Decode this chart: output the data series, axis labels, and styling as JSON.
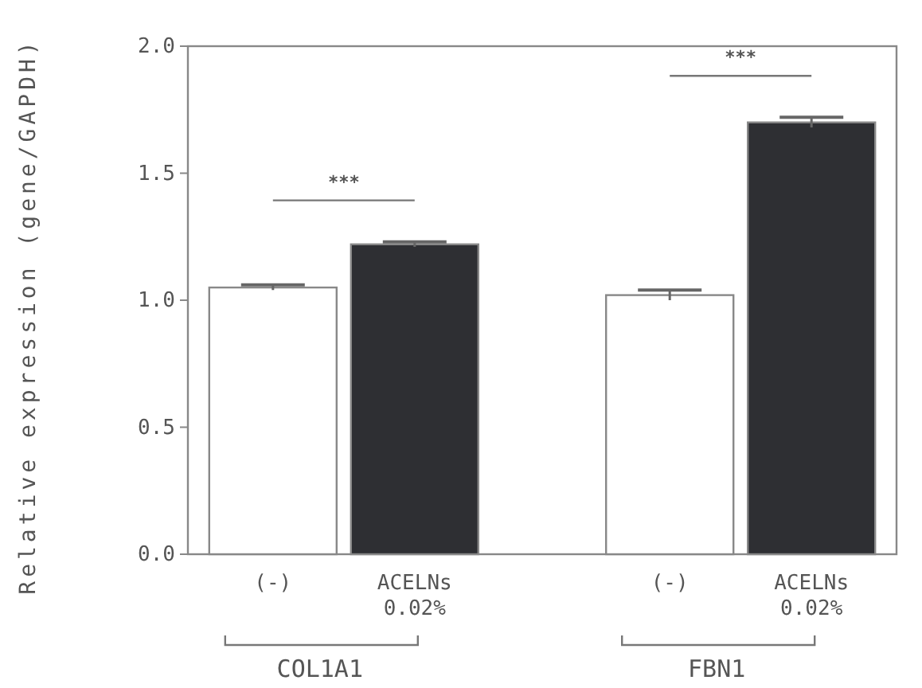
{
  "chart_data": {
    "type": "bar",
    "ylabel": "Relative expression (gene/GAPDH)",
    "categories": [
      "(-)",
      "ACELNs 0.02%",
      "(-)",
      "ACELNs 0.02%"
    ],
    "values": [
      1.05,
      1.22,
      1.02,
      1.7
    ],
    "errors": [
      0.01,
      0.01,
      0.02,
      0.02
    ],
    "colors": [
      "#ffffff",
      "#2e2f33",
      "#ffffff",
      "#2e2f33"
    ],
    "ylim": [
      0,
      2
    ],
    "yticks": [
      {
        "value": 0,
        "label": "0.0"
      },
      {
        "value": 0.5,
        "label": "0.5"
      },
      {
        "value": 1,
        "label": "1.0"
      },
      {
        "value": 1.5,
        "label": "1.5"
      },
      {
        "value": 2,
        "label": "2.0"
      }
    ],
    "annotations": [
      "***",
      "***",
      "COL1A1",
      "FBN1"
    ],
    "grid": false
  }
}
